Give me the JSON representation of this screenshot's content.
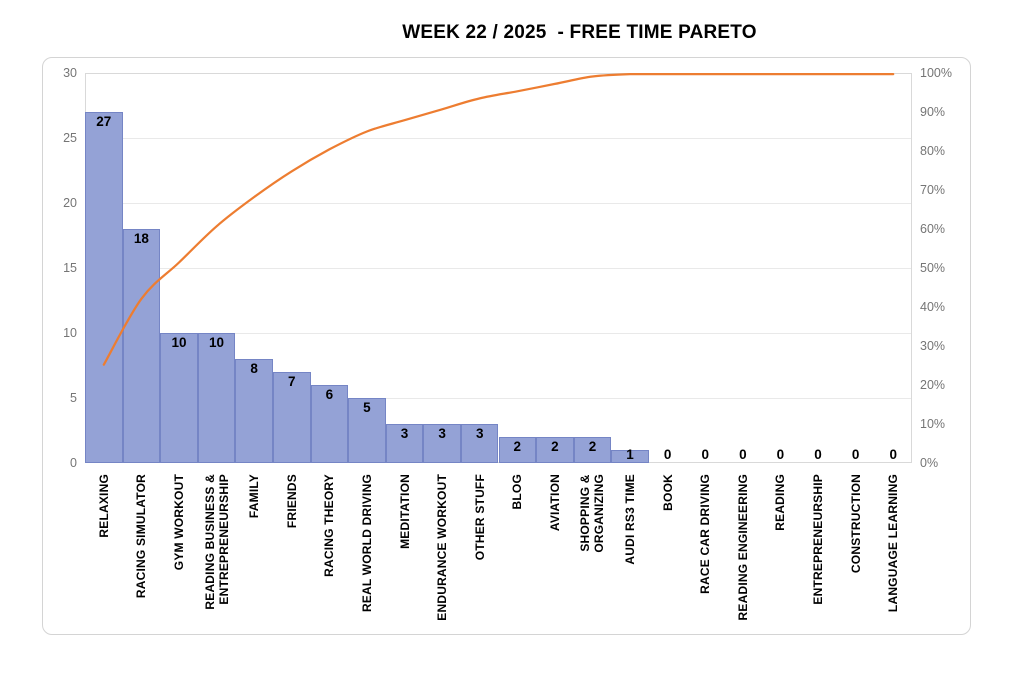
{
  "title": "WEEK 22 / 2025  - FREE TIME PARETO",
  "chart_data": {
    "type": "bar",
    "subtype": "pareto",
    "title": "WEEK 22 / 2025  - FREE TIME PARETO",
    "categories": [
      "RELAXING",
      "RACING SIMULATOR",
      "GYM WORKOUT",
      "READING BUSINESS &\nENTREPRENEURSHIP",
      "FAMILY",
      "FRIENDS",
      "RACING THEORY",
      "REAL WORLD DRIVING",
      "MEDITATION",
      "ENDURANCE WORKOUT",
      "OTHER STUFF",
      "BLOG",
      "AVIATION",
      "SHOPPING &\nORGANIZING",
      "AUDI RS3 TIME",
      "BOOK",
      "RACE CAR DRIVING",
      "READING ENGINEERING",
      "READING",
      "ENTREPRENEURSHIP",
      "CONSTRUCTION",
      "LANGUAGE LEARNING"
    ],
    "values": [
      27,
      18,
      10,
      10,
      8,
      7,
      6,
      5,
      3,
      3,
      3,
      2,
      2,
      2,
      1,
      0,
      0,
      0,
      0,
      0,
      0,
      0
    ],
    "series": [
      {
        "name": "bar-values",
        "type": "bar",
        "values": [
          27,
          18,
          10,
          10,
          8,
          7,
          6,
          5,
          3,
          3,
          3,
          2,
          2,
          2,
          1,
          0,
          0,
          0,
          0,
          0,
          0,
          0
        ]
      },
      {
        "name": "cumulative-percent-line",
        "type": "line",
        "values": [
          25.2,
          42.1,
          51.4,
          60.7,
          68.2,
          74.8,
          80.4,
          85.0,
          87.9,
          90.7,
          93.5,
          95.3,
          97.2,
          99.1,
          100,
          100,
          100,
          100,
          100,
          100,
          100,
          100
        ]
      }
    ],
    "left_axis": {
      "min": 0,
      "max": 30,
      "ticks": [
        "0",
        "5",
        "10",
        "15",
        "20",
        "25",
        "30"
      ]
    },
    "right_axis": {
      "min": 0,
      "max": 100,
      "ticks": [
        "0%",
        "10%",
        "20%",
        "30%",
        "40%",
        "50%",
        "60%",
        "70%",
        "80%",
        "90%",
        "100%"
      ]
    },
    "grid": true,
    "legend": "none",
    "colors": {
      "bar_fill": "#94A2D6",
      "bar_border": "#7585C5",
      "line": "#ED7D31",
      "gridline": "#E9E9E9",
      "plot_border": "#D9D9D9",
      "frame_border": "#D4D4D4",
      "axis_text": "#757575",
      "label_text": "#000000"
    }
  }
}
